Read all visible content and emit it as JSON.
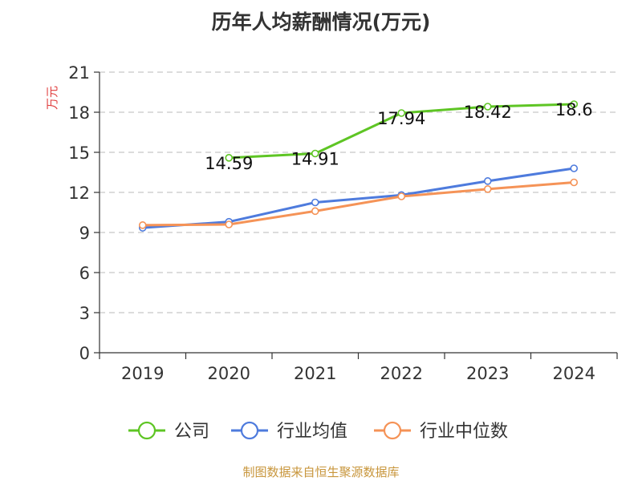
{
  "title": "历年人均薪酬情况(万元)",
  "source": "制图数据来自恒生聚源数据库",
  "colors": {
    "company": "#5ec524",
    "industry_avg": "#4e7bdd",
    "industry_median": "#f59357",
    "grid": "#c8c8c8",
    "axis": "#333333",
    "ylabel": "#e04040"
  },
  "chart_data": {
    "type": "line",
    "title": "历年人均薪酬情况(万元)",
    "ylabel": "万元",
    "xlabel": "",
    "categories": [
      "2019",
      "2020",
      "2021",
      "2022",
      "2023",
      "2024"
    ],
    "ylim": [
      0,
      21
    ],
    "yticks": [
      0,
      3,
      6,
      9,
      12,
      15,
      18,
      21
    ],
    "grid": true,
    "legend_position": "bottom",
    "series": [
      {
        "name": "公司",
        "key": "company",
        "values": [
          null,
          14.59,
          14.91,
          17.94,
          18.42,
          18.6
        ],
        "labels": [
          "",
          "14.59",
          "14.91",
          "17.94",
          "18.42",
          "18.6"
        ]
      },
      {
        "name": "行业均值",
        "key": "industry_avg",
        "values": [
          9.35,
          9.8,
          11.25,
          11.8,
          12.85,
          13.8
        ],
        "labels": [
          "",
          "",
          "",
          "",
          "",
          ""
        ]
      },
      {
        "name": "行业中位数",
        "key": "industry_median",
        "values": [
          9.55,
          9.6,
          10.6,
          11.7,
          12.25,
          12.75
        ],
        "labels": [
          "",
          "",
          "",
          "",
          "",
          ""
        ]
      }
    ]
  }
}
